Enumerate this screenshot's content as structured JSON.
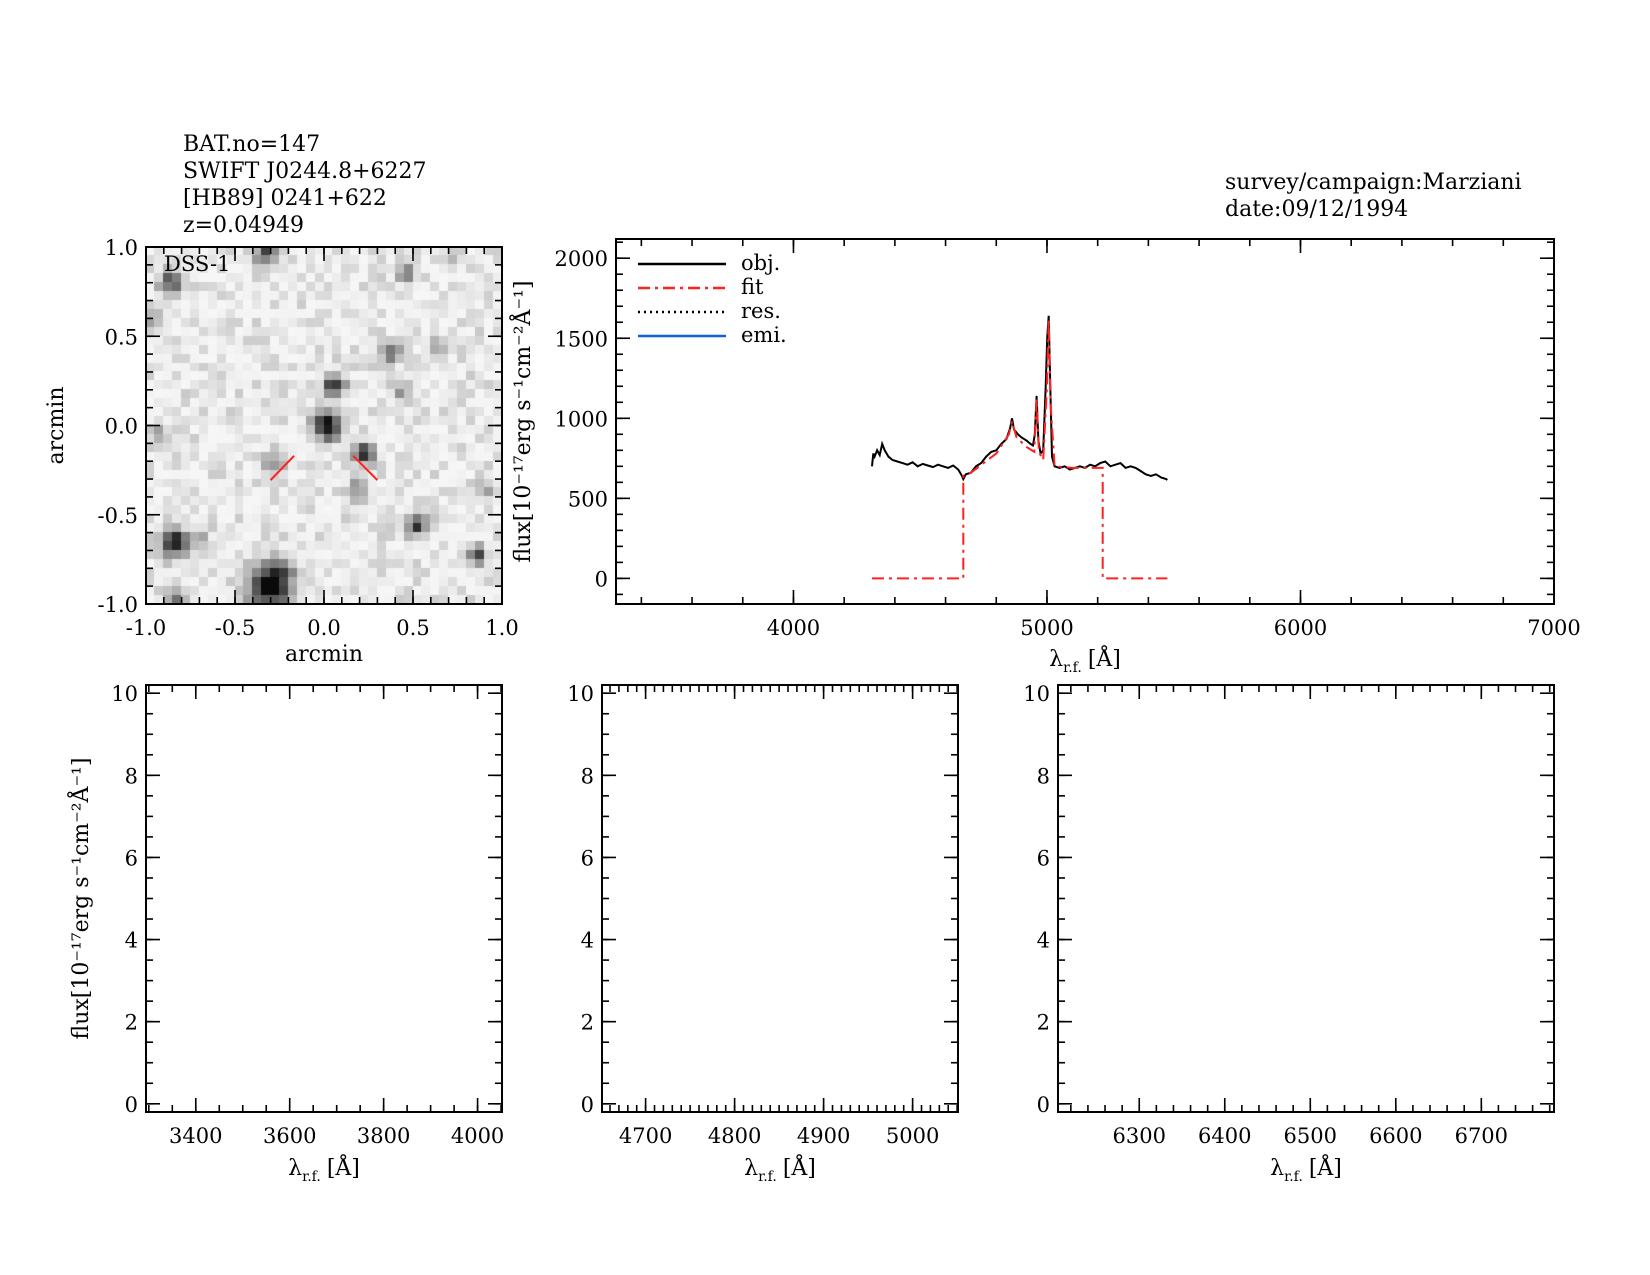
{
  "header": {
    "object_lines": [
      "BAT.no=147",
      "SWIFT J0244.8+6227",
      "[HB89] 0241+622",
      "z=0.04949"
    ],
    "survey": "survey/campaign:Marziani",
    "date": "date:09/12/1994"
  },
  "colors": {
    "obj": "#000000",
    "fit": "#ff2020",
    "res": "#000000",
    "emi": "#1060e0",
    "marker": "#ff2020"
  },
  "chart_data": [
    {
      "id": "dss",
      "type": "image",
      "label": "DSS-1",
      "xlabel": "arcmin",
      "ylabel": "arcmin",
      "xlim": [
        -1.0,
        1.0
      ],
      "ylim": [
        -1.0,
        1.0
      ],
      "xticks": [
        "-1.0",
        "-0.5",
        "0.0",
        "0.5",
        "1.0"
      ],
      "yticks": [
        "-1.0",
        "-0.5",
        "0.0",
        "0.5",
        "1.0"
      ]
    },
    {
      "id": "spectrum",
      "type": "line",
      "xlabel": {
        "symbol": "λ",
        "sub": "r.f.",
        "unit": "[Å]"
      },
      "ylabel": "flux[10⁻¹⁷erg s⁻¹cm⁻²Å⁻¹]",
      "xlim": [
        3300,
        7000
      ],
      "ylim": [
        -160,
        2120
      ],
      "xticks": [
        "4000",
        "5000",
        "6000",
        "7000"
      ],
      "yticks": [
        "0",
        "500",
        "1000",
        "1500",
        "2000"
      ],
      "legend": [
        "obj.",
        "fit",
        "res.",
        "emi."
      ],
      "legend_position": "top-left",
      "series": [
        {
          "name": "obj.",
          "x": [
            4310,
            4315,
            4320,
            4330,
            4340,
            4350,
            4360,
            4375,
            4390,
            4410,
            4430,
            4450,
            4470,
            4490,
            4510,
            4530,
            4550,
            4570,
            4590,
            4610,
            4630,
            4650,
            4665,
            4670,
            4680,
            4700,
            4720,
            4740,
            4760,
            4780,
            4800,
            4820,
            4840,
            4855,
            4862,
            4870,
            4885,
            4900,
            4920,
            4935,
            4945,
            4952,
            4959,
            4966,
            4975,
            4985,
            4995,
            5001,
            5007,
            5013,
            5020,
            5030,
            5050,
            5070,
            5090,
            5110,
            5130,
            5150,
            5170,
            5190,
            5210,
            5230,
            5250,
            5270,
            5290,
            5310,
            5330,
            5350,
            5370,
            5390,
            5410,
            5430,
            5450,
            5470,
            5475
          ],
          "y": [
            700,
            780,
            760,
            800,
            770,
            840,
            800,
            760,
            740,
            730,
            720,
            710,
            725,
            700,
            715,
            705,
            695,
            710,
            700,
            690,
            705,
            680,
            640,
            620,
            650,
            660,
            700,
            720,
            760,
            790,
            800,
            840,
            870,
            940,
            1000,
            930,
            900,
            880,
            860,
            840,
            830,
            900,
            1140,
            860,
            780,
            800,
            1200,
            1500,
            1640,
            1200,
            760,
            700,
            690,
            700,
            680,
            690,
            700,
            690,
            710,
            700,
            720,
            730,
            700,
            710,
            720,
            690,
            700,
            690,
            670,
            650,
            640,
            650,
            630,
            620,
            615
          ]
        },
        {
          "name": "fit",
          "x": [
            4310,
            4670,
            4670,
            4700,
            4750,
            4800,
            4850,
            4862,
            4880,
            4920,
            4950,
            4959,
            4968,
            4985,
            5000,
            5007,
            5014,
            5030,
            5100,
            5220,
            5220,
            5475
          ],
          "y": [
            0,
            0,
            640,
            660,
            720,
            780,
            900,
            980,
            880,
            820,
            790,
            1120,
            790,
            740,
            1200,
            1620,
            1100,
            700,
            690,
            690,
            0,
            0
          ]
        }
      ]
    },
    {
      "id": "panel-hgamma",
      "type": "line",
      "xlabel": {
        "symbol": "λ",
        "sub": "r.f.",
        "unit": "[Å]"
      },
      "ylabel": "flux[10⁻¹⁷erg s⁻¹cm⁻²Å⁻¹]",
      "xlim": [
        3294,
        4052
      ],
      "ylim": [
        -0.2,
        10.2
      ],
      "xticks": [
        "3400",
        "3600",
        "3800",
        "4000"
      ],
      "yticks": [
        "0",
        "2",
        "4",
        "6",
        "8",
        "10"
      ],
      "series": []
    },
    {
      "id": "panel-hbeta",
      "type": "line",
      "xlabel": {
        "symbol": "λ",
        "sub": "r.f.",
        "unit": "[Å]"
      },
      "xlim": [
        4651,
        5051
      ],
      "ylim": [
        -0.2,
        10.2
      ],
      "xticks": [
        "4700",
        "4800",
        "4900",
        "5000"
      ],
      "yticks": [
        "0",
        "2",
        "4",
        "6",
        "8",
        "10"
      ],
      "series": []
    },
    {
      "id": "panel-halpha",
      "type": "line",
      "xlabel": {
        "symbol": "λ",
        "sub": "r.f.",
        "unit": "[Å]"
      },
      "xlim": [
        6205,
        6785
      ],
      "ylim": [
        -0.2,
        10.2
      ],
      "xticks": [
        "6300",
        "6400",
        "6500",
        "6600",
        "6700"
      ],
      "yticks": [
        "0",
        "2",
        "4",
        "6",
        "8",
        "10"
      ],
      "series": []
    }
  ]
}
